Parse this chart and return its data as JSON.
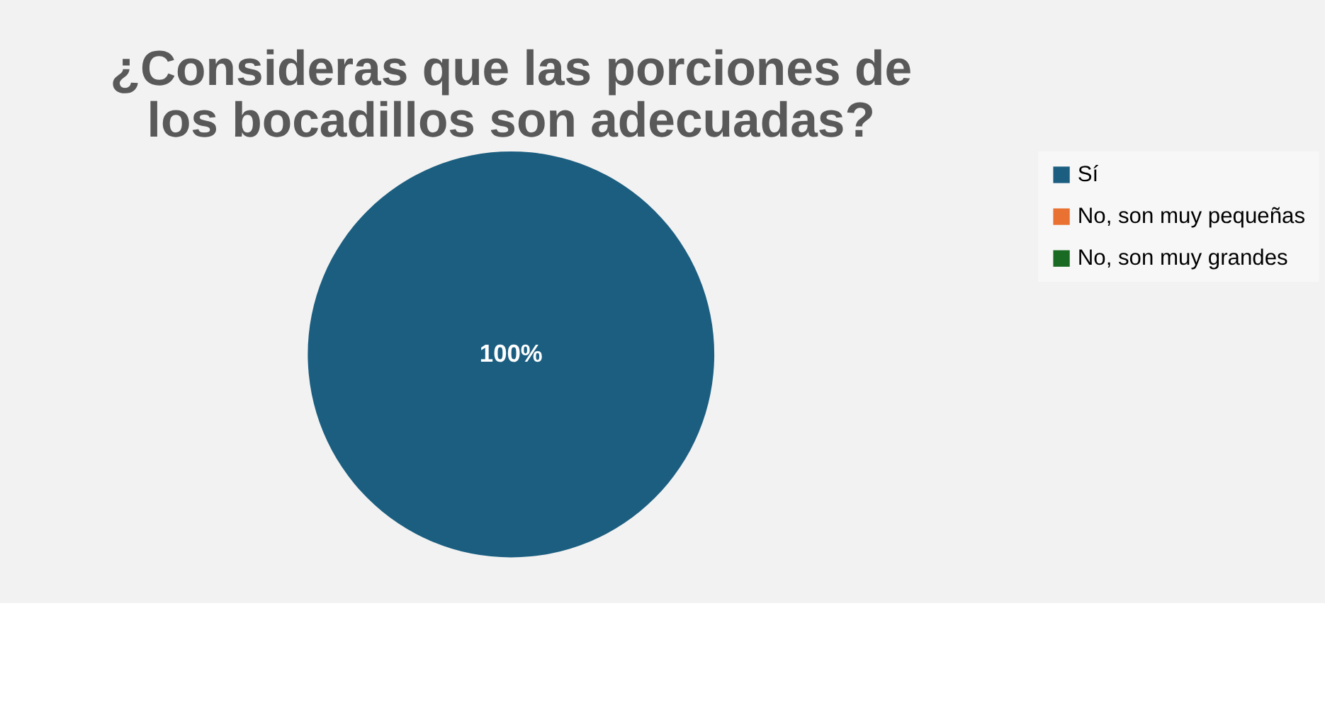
{
  "chart_data": {
    "type": "pie",
    "title": "¿Consideras que las porciones de los bocadillos son adecuadas?",
    "categories": [
      "Sí",
      "No, son muy pequeñas",
      "No, son muy grandes"
    ],
    "values": [
      100,
      0,
      0
    ],
    "colors": [
      "#1b5e80",
      "#e97132",
      "#196b24"
    ],
    "value_labels": [
      "100%",
      null,
      null
    ],
    "legend": "right"
  }
}
